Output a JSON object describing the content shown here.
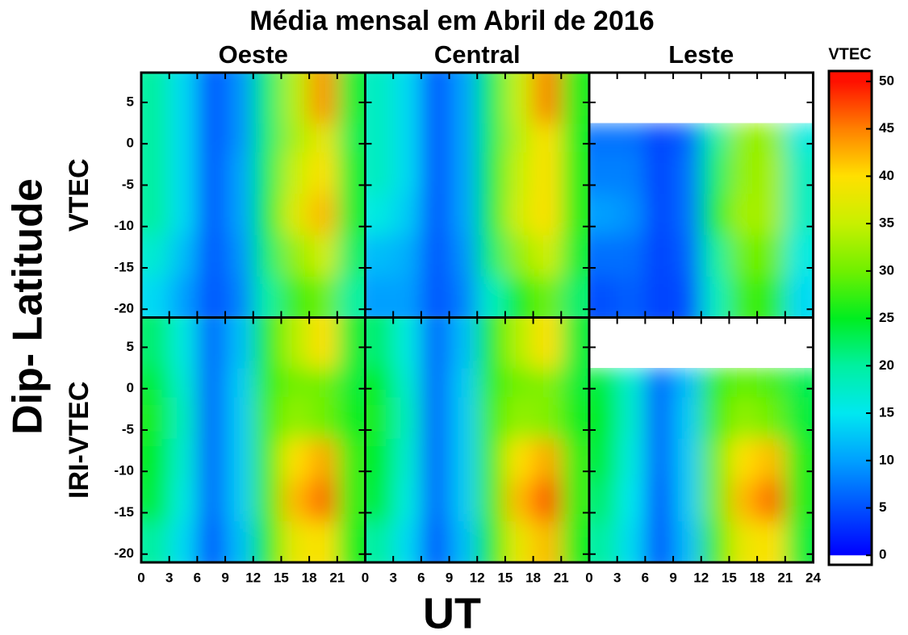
{
  "chart_data": {
    "type": "heatmap",
    "title": "Média mensal em Abril de 2016",
    "xlabel": "UT",
    "ylabel": "Dip- Latitude",
    "colorbar_label": "VTEC",
    "xlim": [
      0,
      24
    ],
    "ylim": [
      -21,
      8.6
    ],
    "yticks": [
      -20,
      -15,
      -10,
      -5,
      0,
      5
    ],
    "clim": [
      -1,
      51.1
    ],
    "cticks": [
      0,
      5,
      10,
      15,
      20,
      25,
      30,
      35,
      40,
      45,
      50
    ],
    "colormap": [
      "#0000ff",
      "#0050ff",
      "#00a0ff",
      "#00e8f0",
      "#00f0a0",
      "#00ee20",
      "#70f000",
      "#c8f000",
      "#ffe000",
      "#ff8000",
      "#ff1000"
    ],
    "xbins": [
      0,
      3,
      6,
      9,
      12,
      15,
      18,
      21,
      24
    ],
    "ybins": [
      -21,
      -16,
      -11,
      -6,
      -1,
      2.5,
      8.6
    ],
    "columns": [
      {
        "name": "Oeste",
        "xticks": [
          0,
          3,
          6,
          9,
          12,
          15,
          18,
          21
        ]
      },
      {
        "name": "Central",
        "xticks": [
          0,
          3,
          6,
          9,
          12,
          15,
          18,
          21
        ]
      },
      {
        "name": "Leste",
        "xticks": [
          0,
          3,
          6,
          9,
          12,
          15,
          18,
          21,
          24
        ]
      }
    ],
    "rows": [
      {
        "name": "VTEC",
        "panels": [
          [
            [
              14,
              10,
              5,
              8,
              20,
              28,
              30,
              20
            ],
            [
              17,
              12,
              5,
              9,
              22,
              32,
              36,
              22
            ],
            [
              20,
              14,
              5,
              10,
              24,
              37,
              42,
              24
            ],
            [
              20,
              14,
              5,
              10,
              23,
              35,
              40,
              24
            ],
            [
              20,
              14,
              5,
              9,
              22,
              33,
              38,
              23
            ],
            [
              20,
              14,
              5,
              9,
              22,
              34,
              44,
              24
            ]
          ],
          [
            [
              10,
              10,
              5,
              8,
              18,
              26,
              30,
              22
            ],
            [
              12,
              11,
              5,
              9,
              22,
              32,
              36,
              24
            ],
            [
              16,
              13,
              5,
              10,
              24,
              36,
              40,
              26
            ],
            [
              18,
              14,
              5,
              10,
              24,
              35,
              40,
              26
            ],
            [
              18,
              14,
              5,
              10,
              23,
              34,
              40,
              25
            ],
            [
              18,
              14,
              5,
              10,
              23,
              35,
              45,
              26
            ]
          ],
          [
            [
              5,
              6,
              4,
              5,
              18,
              28,
              27,
              14
            ],
            [
              7,
              7,
              4,
              6,
              20,
              30,
              30,
              16
            ],
            [
              10,
              9,
              4,
              7,
              24,
              33,
              33,
              18
            ],
            [
              8,
              8,
              4,
              7,
              22,
              32,
              33,
              18
            ],
            [
              7,
              7,
              4,
              6,
              20,
              32,
              32,
              16
            ],
            [
              null,
              null,
              null,
              null,
              null,
              null,
              null,
              null
            ]
          ]
        ]
      },
      {
        "name": "IRI-VTEC",
        "panels": [
          [
            [
              20,
              14,
              5,
              12,
              26,
              38,
              40,
              25
            ],
            [
              24,
              16,
              6,
              13,
              28,
              42,
              46,
              27
            ],
            [
              25,
              17,
              6,
              13,
              28,
              40,
              43,
              27
            ],
            [
              26,
              18,
              6,
              13,
              28,
              32,
              30,
              25
            ],
            [
              24,
              17,
              6,
              13,
              27,
              30,
              30,
              24
            ],
            [
              22,
              16,
              6,
              12,
              26,
              34,
              40,
              24
            ]
          ],
          [
            [
              20,
              14,
              5,
              12,
              26,
              38,
              42,
              25
            ],
            [
              24,
              16,
              6,
              13,
              28,
              42,
              47,
              27
            ],
            [
              25,
              17,
              6,
              13,
              28,
              40,
              43,
              27
            ],
            [
              26,
              18,
              6,
              13,
              28,
              32,
              31,
              25
            ],
            [
              25,
              17,
              6,
              13,
              27,
              30,
              31,
              24
            ],
            [
              22,
              16,
              6,
              12,
              26,
              34,
              40,
              24
            ]
          ],
          [
            [
              20,
              14,
              5,
              12,
              28,
              38,
              40,
              24
            ],
            [
              22,
              15,
              5,
              13,
              30,
              42,
              46,
              26
            ],
            [
              24,
              16,
              6,
              13,
              30,
              40,
              42,
              26
            ],
            [
              25,
              17,
              6,
              13,
              28,
              32,
              30,
              24
            ],
            [
              24,
              17,
              6,
              12,
              27,
              29,
              28,
              23
            ],
            [
              null,
              null,
              null,
              null,
              null,
              null,
              null,
              null
            ]
          ]
        ]
      }
    ]
  }
}
